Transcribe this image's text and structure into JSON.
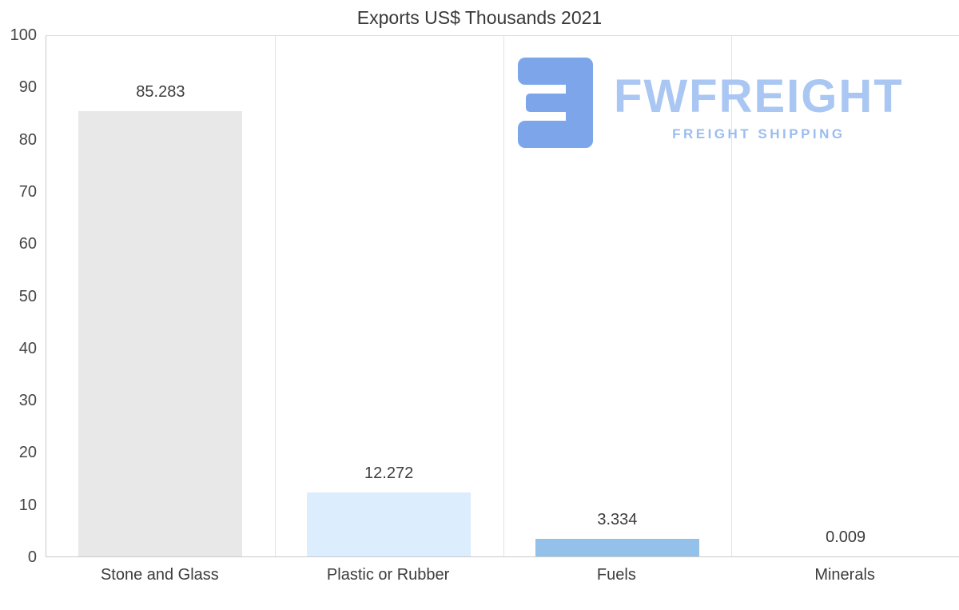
{
  "page": {
    "title": "Exports US$ Thousands 2021"
  },
  "watermark": {
    "brand": "FWFREIGHT",
    "tagline": "FREIGHT SHIPPING",
    "icon": "fwfreight-f-mark",
    "brand_color": "#a9c7f2",
    "tagline_color": "#9bbdf0",
    "icon_color": "#7da6ea"
  },
  "chart_data": {
    "type": "bar",
    "title": "Exports US$ Thousands 2021",
    "categories": [
      "Stone and Glass",
      "Plastic or Rubber",
      "Fuels",
      "Minerals"
    ],
    "values": [
      85.283,
      12.272,
      3.334,
      0.009
    ],
    "value_labels": [
      "85.283",
      "12.272",
      "3.334",
      "0.009"
    ],
    "bar_colors": [
      "#e8e8e8",
      "#dcedfd",
      "#94c1ea",
      "#dcedfd"
    ],
    "xlabel": "",
    "ylabel": "",
    "ylim": [
      0,
      100
    ],
    "yticks": [
      0,
      10,
      20,
      30,
      40,
      50,
      60,
      70,
      80,
      90,
      100
    ],
    "grid": "vertical-category-separators",
    "legend": "none"
  }
}
